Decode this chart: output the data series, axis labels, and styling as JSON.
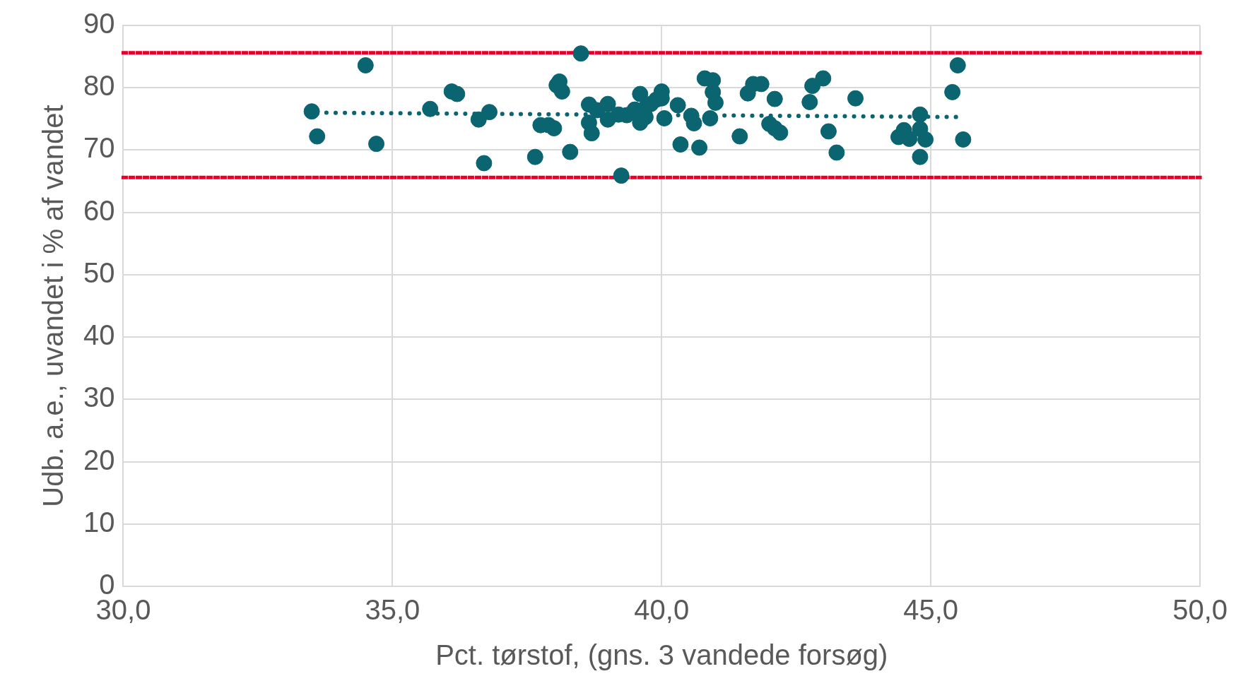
{
  "chart_data": {
    "type": "scatter",
    "xlabel": "Pct. tørstof, (gns. 3 vandede forsøg)",
    "ylabel": "Udb. a.e., uvandet i % af vandet",
    "xlim": [
      30,
      50
    ],
    "xticks": [
      {
        "value": 30,
        "label": "30,0"
      },
      {
        "value": 35,
        "label": "35,0"
      },
      {
        "value": 40,
        "label": "40,0"
      },
      {
        "value": 45,
        "label": "45,0"
      },
      {
        "value": 50,
        "label": "50,0"
      }
    ],
    "ylim": [
      0,
      90
    ],
    "yticks": [
      0,
      10,
      20,
      30,
      40,
      50,
      60,
      70,
      80,
      90
    ],
    "grid": true,
    "legend": false,
    "marker": "circle",
    "series": [
      {
        "type": "scatter",
        "color": "#0a6570",
        "x": [
          33.5,
          33.6,
          34.5,
          34.7,
          35.7,
          36.1,
          36.2,
          36.6,
          36.7,
          36.8,
          37.65,
          37.75,
          37.9,
          38.0,
          38.05,
          38.1,
          38.15,
          38.3,
          38.5,
          38.65,
          38.65,
          38.7,
          38.8,
          39.0,
          39.0,
          39.2,
          39.25,
          39.35,
          39.5,
          39.6,
          39.6,
          39.7,
          39.7,
          39.8,
          39.9,
          40.0,
          40.0,
          40.05,
          40.3,
          40.35,
          40.55,
          40.6,
          40.7,
          40.8,
          40.95,
          40.9,
          40.95,
          41.0,
          41.45,
          41.6,
          41.7,
          41.85,
          42.0,
          42.1,
          42.1,
          42.2,
          42.75,
          42.8,
          43.0,
          43.1,
          43.25,
          43.6,
          44.4,
          44.5,
          44.6,
          44.8,
          44.8,
          44.8,
          44.9,
          45.4,
          45.5,
          45.6
        ],
        "values": [
          76.2,
          72.2,
          83.6,
          71.0,
          76.6,
          79.4,
          79.0,
          74.9,
          67.9,
          76.1,
          68.9,
          74.0,
          74.0,
          73.5,
          80.4,
          81.0,
          79.4,
          69.7,
          85.5,
          77.3,
          74.4,
          72.7,
          76.4,
          77.4,
          74.9,
          75.7,
          65.9,
          75.6,
          76.5,
          79.0,
          74.4,
          75.3,
          76.8,
          77.4,
          78.1,
          79.4,
          78.3,
          75.1,
          77.2,
          70.9,
          75.5,
          74.3,
          70.4,
          81.5,
          81.2,
          75.1,
          79.3,
          77.6,
          72.2,
          79.1,
          80.6,
          80.6,
          74.2,
          73.5,
          78.2,
          72.8,
          77.7,
          80.3,
          81.5,
          73.0,
          69.6,
          78.3,
          72.1,
          73.2,
          71.8,
          75.7,
          73.4,
          68.9,
          71.7,
          79.3,
          83.6,
          71.7
        ]
      },
      {
        "type": "line",
        "color": "#0a6570",
        "line_style": "dotted",
        "marker": "none",
        "x": [
          33.6,
          45.6
        ],
        "values": [
          76.0,
          75.3
        ]
      }
    ],
    "ref_lines": [
      {
        "axis": "y",
        "value": 85.6,
        "color": "#e4002b",
        "line_style": "dotted"
      },
      {
        "axis": "y",
        "value": 65.6,
        "color": "#e4002b",
        "line_style": "dotted"
      }
    ]
  }
}
